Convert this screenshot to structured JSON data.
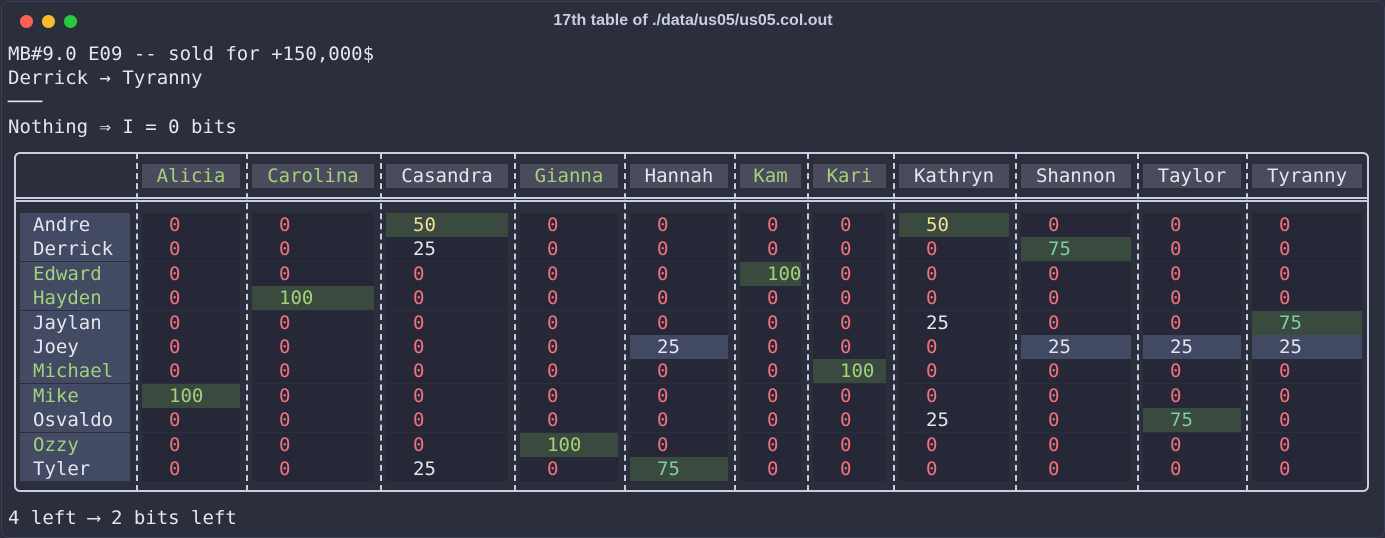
{
  "window": {
    "title": "17th table of ./data/us05/us05.col.out"
  },
  "header_lines": [
    "MB#9.0 E09 -- sold for +150,000$",
    "Derrick → Tyranny",
    "───",
    "Nothing ⇒ I = 0 bits"
  ],
  "footer_line": "4 left ⟶ 2 bits left",
  "table": {
    "columns": [
      {
        "label": "Alicia",
        "color": "green"
      },
      {
        "label": "Carolina",
        "color": "green"
      },
      {
        "label": "Casandra",
        "color": "white"
      },
      {
        "label": "Gianna",
        "color": "green"
      },
      {
        "label": "Hannah",
        "color": "white"
      },
      {
        "label": "Kam",
        "color": "green"
      },
      {
        "label": "Kari",
        "color": "green"
      },
      {
        "label": "Kathryn",
        "color": "white"
      },
      {
        "label": "Shannon",
        "color": "white"
      },
      {
        "label": "Taylor",
        "color": "white"
      },
      {
        "label": "Tyranny",
        "color": "white"
      }
    ],
    "rows": [
      {
        "name": "Andre",
        "color": "white",
        "cells": [
          {
            "v": "0"
          },
          {
            "v": "0"
          },
          {
            "v": "50",
            "fg": "yellow",
            "bg": "green"
          },
          {
            "v": "0"
          },
          {
            "v": "0"
          },
          {
            "v": "0"
          },
          {
            "v": "0"
          },
          {
            "v": "50",
            "fg": "yellow",
            "bg": "green"
          },
          {
            "v": "0"
          },
          {
            "v": "0"
          },
          {
            "v": "0"
          }
        ]
      },
      {
        "name": "Derrick",
        "color": "white",
        "cells": [
          {
            "v": "0"
          },
          {
            "v": "0"
          },
          {
            "v": "25",
            "fg": "white"
          },
          {
            "v": "0"
          },
          {
            "v": "0"
          },
          {
            "v": "0"
          },
          {
            "v": "0"
          },
          {
            "v": "0"
          },
          {
            "v": "75",
            "fg": "teal",
            "bg": "green"
          },
          {
            "v": "0"
          },
          {
            "v": "0"
          }
        ]
      },
      {
        "name": "Edward",
        "color": "green",
        "cells": [
          {
            "v": "0"
          },
          {
            "v": "0"
          },
          {
            "v": "0"
          },
          {
            "v": "0"
          },
          {
            "v": "0"
          },
          {
            "v": "100",
            "fg": "green",
            "bg": "green"
          },
          {
            "v": "0"
          },
          {
            "v": "0"
          },
          {
            "v": "0"
          },
          {
            "v": "0"
          },
          {
            "v": "0"
          }
        ]
      },
      {
        "name": "Hayden",
        "color": "green",
        "cells": [
          {
            "v": "0"
          },
          {
            "v": "100",
            "fg": "green",
            "bg": "green"
          },
          {
            "v": "0"
          },
          {
            "v": "0"
          },
          {
            "v": "0"
          },
          {
            "v": "0"
          },
          {
            "v": "0"
          },
          {
            "v": "0"
          },
          {
            "v": "0"
          },
          {
            "v": "0"
          },
          {
            "v": "0"
          }
        ]
      },
      {
        "name": "Jaylan",
        "color": "white",
        "cells": [
          {
            "v": "0"
          },
          {
            "v": "0"
          },
          {
            "v": "0"
          },
          {
            "v": "0"
          },
          {
            "v": "0"
          },
          {
            "v": "0"
          },
          {
            "v": "0"
          },
          {
            "v": "25",
            "fg": "white"
          },
          {
            "v": "0"
          },
          {
            "v": "0"
          },
          {
            "v": "75",
            "fg": "teal",
            "bg": "green"
          }
        ]
      },
      {
        "name": "Joey",
        "color": "white",
        "cells": [
          {
            "v": "0"
          },
          {
            "v": "0"
          },
          {
            "v": "0"
          },
          {
            "v": "0"
          },
          {
            "v": "25",
            "fg": "white",
            "bg": "blue"
          },
          {
            "v": "0"
          },
          {
            "v": "0"
          },
          {
            "v": "0"
          },
          {
            "v": "25",
            "fg": "white",
            "bg": "blue"
          },
          {
            "v": "25",
            "fg": "white",
            "bg": "blue"
          },
          {
            "v": "25",
            "fg": "white",
            "bg": "blue"
          }
        ]
      },
      {
        "name": "Michael",
        "color": "green",
        "cells": [
          {
            "v": "0"
          },
          {
            "v": "0"
          },
          {
            "v": "0"
          },
          {
            "v": "0"
          },
          {
            "v": "0"
          },
          {
            "v": "0"
          },
          {
            "v": "100",
            "fg": "green",
            "bg": "green"
          },
          {
            "v": "0"
          },
          {
            "v": "0"
          },
          {
            "v": "0"
          },
          {
            "v": "0"
          }
        ]
      },
      {
        "name": "Mike",
        "color": "green",
        "cells": [
          {
            "v": "100",
            "fg": "green",
            "bg": "green"
          },
          {
            "v": "0"
          },
          {
            "v": "0"
          },
          {
            "v": "0"
          },
          {
            "v": "0"
          },
          {
            "v": "0"
          },
          {
            "v": "0"
          },
          {
            "v": "0"
          },
          {
            "v": "0"
          },
          {
            "v": "0"
          },
          {
            "v": "0"
          }
        ]
      },
      {
        "name": "Osvaldo",
        "color": "white",
        "cells": [
          {
            "v": "0"
          },
          {
            "v": "0"
          },
          {
            "v": "0"
          },
          {
            "v": "0"
          },
          {
            "v": "0"
          },
          {
            "v": "0"
          },
          {
            "v": "0"
          },
          {
            "v": "25",
            "fg": "white"
          },
          {
            "v": "0"
          },
          {
            "v": "75",
            "fg": "teal",
            "bg": "green"
          },
          {
            "v": "0"
          }
        ]
      },
      {
        "name": "Ozzy",
        "color": "green",
        "cells": [
          {
            "v": "0"
          },
          {
            "v": "0"
          },
          {
            "v": "0"
          },
          {
            "v": "100",
            "fg": "green",
            "bg": "green"
          },
          {
            "v": "0"
          },
          {
            "v": "0"
          },
          {
            "v": "0"
          },
          {
            "v": "0"
          },
          {
            "v": "0"
          },
          {
            "v": "0"
          },
          {
            "v": "0"
          }
        ]
      },
      {
        "name": "Tyler",
        "color": "white",
        "cells": [
          {
            "v": "0"
          },
          {
            "v": "0"
          },
          {
            "v": "25",
            "fg": "white"
          },
          {
            "v": "0"
          },
          {
            "v": "75",
            "fg": "teal",
            "bg": "green"
          },
          {
            "v": "0"
          },
          {
            "v": "0"
          },
          {
            "v": "0"
          },
          {
            "v": "0"
          },
          {
            "v": "0"
          },
          {
            "v": "0"
          }
        ]
      }
    ]
  },
  "colors": {
    "background": "#2b2e3b",
    "header_cell": "#4a4b5c",
    "name_cell": "#434a63",
    "highlight_green": "#3b4a3e",
    "highlight_blue": "#414963",
    "zero_red": "#f0707d",
    "yellow": "#ede09a",
    "teal": "#7ecfa2",
    "green_text": "#a3d17a"
  }
}
